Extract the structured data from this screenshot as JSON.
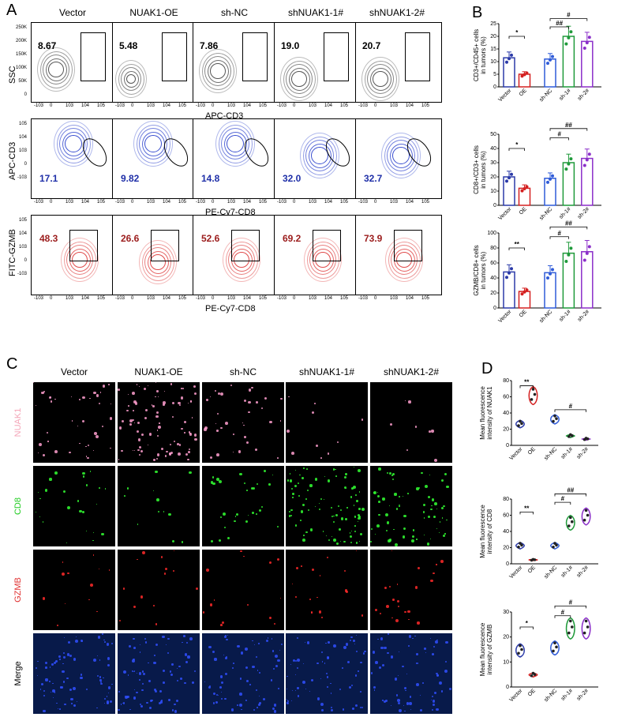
{
  "panels": {
    "a": "A",
    "b": "B",
    "c": "C",
    "d": "D"
  },
  "columns": [
    "Vector",
    "NUAK1-OE",
    "sh-NC",
    "shNUAK1-1#",
    "shNUAK1-2#"
  ],
  "flow_rows": [
    {
      "ylabel": "SSC",
      "xlabel": "APC-CD3",
      "values": [
        "8.67",
        "5.48",
        "7.86",
        "19.0",
        "20.7"
      ],
      "yticks": [
        "250K",
        "200K",
        "150K",
        "100K",
        "50K",
        "0"
      ],
      "value_color": "#000000",
      "plot_color": "#555555",
      "gate": "rect-right"
    },
    {
      "ylabel": "APC-CD3",
      "xlabel": "PE-Cy7-CD8",
      "values": [
        "17.1",
        "9.82",
        "14.8",
        "32.0",
        "32.7"
      ],
      "yticks": [
        "10^5",
        "10^4",
        "10^3",
        "0",
        "-10^3"
      ],
      "value_color": "#1f2fa8",
      "plot_color": "#3a4fd0",
      "gate": "ellipse"
    },
    {
      "ylabel": "FITC-GZMB",
      "xlabel": "PE-Cy7-CD8",
      "values": [
        "48.3",
        "26.6",
        "52.6",
        "69.2",
        "73.9"
      ],
      "yticks": [
        "10^5",
        "10^4",
        "10^3",
        "0",
        "-10^3"
      ],
      "value_color": "#9b1c1c",
      "plot_color": "#e04a4a",
      "gate": "rect-top"
    }
  ],
  "flow_xticks": [
    "-10^3",
    "0",
    "10^3",
    "10^4",
    "10^5"
  ],
  "chart_data": [
    {
      "type": "bar",
      "ylabel_line1": "CD3+/CD45+ cells",
      "ylabel_line2": "in tumors (%)",
      "categories": [
        "Vector",
        "OE",
        "sh-NC",
        "sh-1#",
        "sh-2#"
      ],
      "values": [
        11.5,
        5,
        11,
        20,
        18
      ],
      "ylim": [
        0,
        25
      ],
      "yticks": [
        "0",
        "5",
        "10",
        "15",
        "20",
        "25"
      ],
      "sig": [
        {
          "text": "*"
        },
        {
          "text": "##"
        },
        {
          "text": "#"
        }
      ]
    },
    {
      "type": "bar",
      "ylabel_line1": "CD8+/CD3+ cells",
      "ylabel_line2": "in tumors (%)",
      "categories": [
        "Vector",
        "OE",
        "sh-NC",
        "sh-1#",
        "sh-2#"
      ],
      "values": [
        20,
        12,
        19,
        30,
        33
      ],
      "ylim": [
        0,
        50
      ],
      "yticks": [
        "0",
        "10",
        "20",
        "30",
        "40",
        "50"
      ],
      "sig": [
        {
          "text": "*"
        },
        {
          "text": "#"
        },
        {
          "text": "##"
        }
      ]
    },
    {
      "type": "bar",
      "ylabel_line1": "GZMB/CD8+ cells",
      "ylabel_line2": "in tumors (%)",
      "categories": [
        "Vector",
        "OE",
        "sh-NC",
        "sh-1#",
        "sh-2#"
      ],
      "values": [
        48,
        22,
        47,
        73,
        75
      ],
      "ylim": [
        0,
        100
      ],
      "yticks": [
        "0",
        "20",
        "40",
        "60",
        "80",
        "100"
      ],
      "sig": [
        {
          "text": "**"
        },
        {
          "text": "#"
        },
        {
          "text": "##"
        }
      ]
    },
    {
      "type": "violin",
      "ylabel_line1": "Mean fluorescence",
      "ylabel_line2": "intensity of NUAK1",
      "categories": [
        "Vector",
        "OE",
        "sh-NC",
        "sh-1#",
        "sh-2#"
      ],
      "values": [
        27,
        63,
        33,
        12,
        8
      ],
      "ylim": [
        0,
        80
      ],
      "yticks": [
        "0",
        "20",
        "40",
        "60",
        "80"
      ],
      "sig": [
        {
          "text": "**"
        },
        {
          "text": "#"
        }
      ]
    },
    {
      "type": "violin",
      "ylabel_line1": "Mean fluorescence",
      "ylabel_line2": "intensity of CD8",
      "categories": [
        "Vector",
        "OE",
        "sh-NC",
        "sh-1#",
        "sh-2#"
      ],
      "values": [
        23,
        5,
        23,
        52,
        60
      ],
      "ylim": [
        0,
        80
      ],
      "yticks": [
        "0",
        "20",
        "40",
        "60",
        "80"
      ],
      "sig": [
        {
          "text": "**"
        },
        {
          "text": "#"
        },
        {
          "text": "##"
        }
      ]
    },
    {
      "type": "violin",
      "ylabel_line1": "Mean fluorescence",
      "ylabel_line2": "intensity of GZMB",
      "categories": [
        "Vector",
        "OE",
        "sh-NC",
        "sh-1#",
        "sh-2#"
      ],
      "values": [
        15,
        5,
        16,
        24,
        24
      ],
      "ylim": [
        0,
        30
      ],
      "yticks": [
        "0",
        "10",
        "20",
        "30"
      ],
      "sig": [
        {
          "text": "*"
        },
        {
          "text": "#"
        },
        {
          "text": "#"
        }
      ]
    }
  ],
  "colors": {
    "vector": "#2b3aa8",
    "oe": "#d42020",
    "shnc": "#2f5bd8",
    "sh1": "#1f9a3a",
    "sh2": "#8b2fc9"
  },
  "if_rows": [
    {
      "label": "NUAK1",
      "color": "#f4a6b8",
      "dot": "#ff9fcf"
    },
    {
      "label": "CD8",
      "color": "#22cc22",
      "dot": "#33ff33"
    },
    {
      "label": "GZMB",
      "color": "#e03030",
      "dot": "#ff2a2a"
    },
    {
      "label": "Merge",
      "color": "#000000",
      "dot": "#3050ff"
    }
  ]
}
